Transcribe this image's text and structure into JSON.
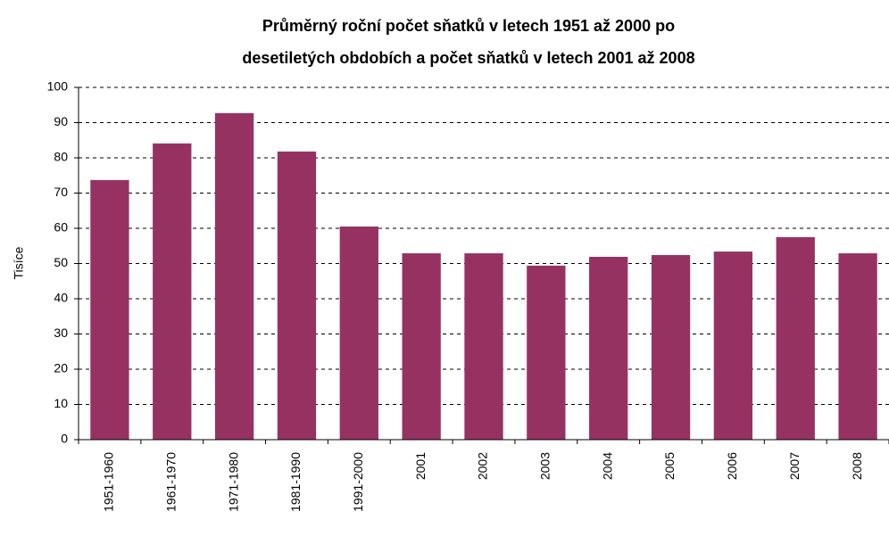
{
  "chart_data": {
    "type": "bar",
    "title": [
      "Průměrný roční počet sňatků v letech 1951 až 2000 po",
      "desetiletých obdobích a počet sňatků v letech 2001 až 2008"
    ],
    "y_label": "Tisíce",
    "categories": [
      "1951-1960",
      "1961-1970",
      "1971-1980",
      "1981-1990",
      "1991-2000",
      "2001",
      "2002",
      "2003",
      "2004",
      "2005",
      "2006",
      "2007",
      "2008"
    ],
    "values": [
      73.7,
      84.1,
      92.7,
      81.8,
      60.5,
      52.9,
      52.9,
      49.4,
      51.9,
      52.4,
      53.4,
      57.5,
      52.9
    ],
    "color": "#963262",
    "ylim": [
      0,
      100
    ],
    "yticks": [
      0,
      10,
      20,
      30,
      40,
      50,
      60,
      70,
      80,
      90,
      100
    ],
    "grid": true
  }
}
